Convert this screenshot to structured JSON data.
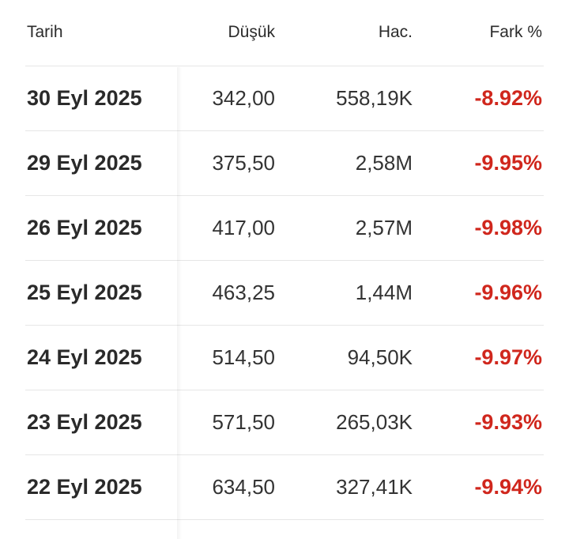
{
  "table": {
    "headers": {
      "date": "Tarih",
      "low": "Düşük",
      "volume": "Hac.",
      "change": "Fark %"
    },
    "rows": [
      {
        "date": "30 Eyl 2025",
        "low": "342,00",
        "volume": "558,19K",
        "change": "-8.92%"
      },
      {
        "date": "29 Eyl 2025",
        "low": "375,50",
        "volume": "2,58M",
        "change": "-9.95%"
      },
      {
        "date": "26 Eyl 2025",
        "low": "417,00",
        "volume": "2,57M",
        "change": "-9.98%"
      },
      {
        "date": "25 Eyl 2025",
        "low": "463,25",
        "volume": "1,44M",
        "change": "-9.96%"
      },
      {
        "date": "24 Eyl 2025",
        "low": "514,50",
        "volume": "94,50K",
        "change": "-9.97%"
      },
      {
        "date": "23 Eyl 2025",
        "low": "571,50",
        "volume": "265,03K",
        "change": "-9.93%"
      },
      {
        "date": "22 Eyl 2025",
        "low": "634,50",
        "volume": "327,41K",
        "change": "-9.94%"
      }
    ]
  },
  "colors": {
    "negative": "#d0271d",
    "divider": "#e6e6e6"
  }
}
